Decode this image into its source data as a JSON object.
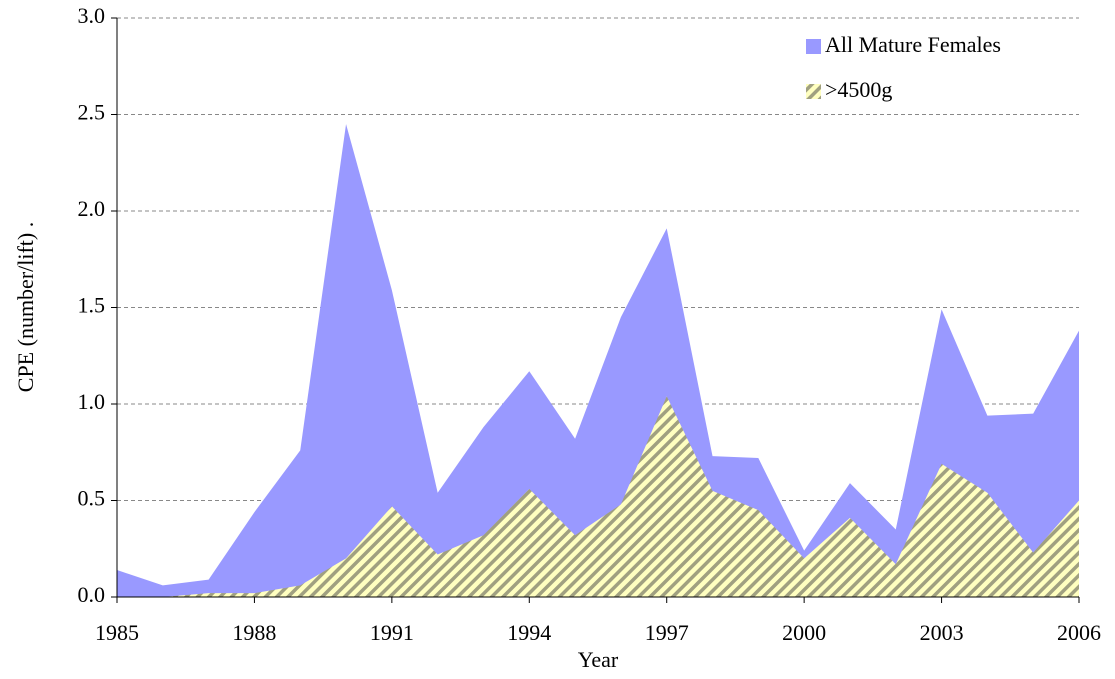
{
  "chart_data": {
    "type": "area",
    "x_label": "Year",
    "y_label": "CPE (number/lift) .",
    "x": [
      1985,
      1986,
      1987,
      1988,
      1989,
      1990,
      1991,
      1992,
      1993,
      1994,
      1995,
      1996,
      1997,
      1998,
      1999,
      2000,
      2001,
      2002,
      2003,
      2004,
      2005,
      2006
    ],
    "series": [
      {
        "name": "All Mature Females",
        "color": "#9999ff",
        "values": [
          0.14,
          0.06,
          0.09,
          0.44,
          0.76,
          2.45,
          1.59,
          0.54,
          0.88,
          1.17,
          0.82,
          1.45,
          1.91,
          0.73,
          0.72,
          0.24,
          0.59,
          0.35,
          1.49,
          0.94,
          0.95,
          1.38
        ]
      },
      {
        "name": ">4500g",
        "color": "#ffffc0",
        "values": [
          0,
          0,
          0.02,
          0.02,
          0.06,
          0.2,
          0.47,
          0.22,
          0.32,
          0.56,
          0.32,
          0.48,
          1.04,
          0.55,
          0.45,
          0.2,
          0.41,
          0.17,
          0.69,
          0.54,
          0.23,
          0.5
        ]
      }
    ],
    "xlim": [
      1985,
      2006
    ],
    "xticks": [
      1985,
      1988,
      1991,
      1994,
      1997,
      2000,
      2003,
      2006
    ],
    "ylim": [
      0,
      3
    ],
    "yticks": [
      {
        "value": 0,
        "label": "0.0"
      },
      0.5,
      {
        "value": 1,
        "label": "1.0"
      },
      1.5,
      {
        "value": 2,
        "label": "2.0"
      },
      2.5,
      {
        "value": 3,
        "label": "3.0"
      }
    ],
    "grid": true,
    "legend": "top-right"
  }
}
